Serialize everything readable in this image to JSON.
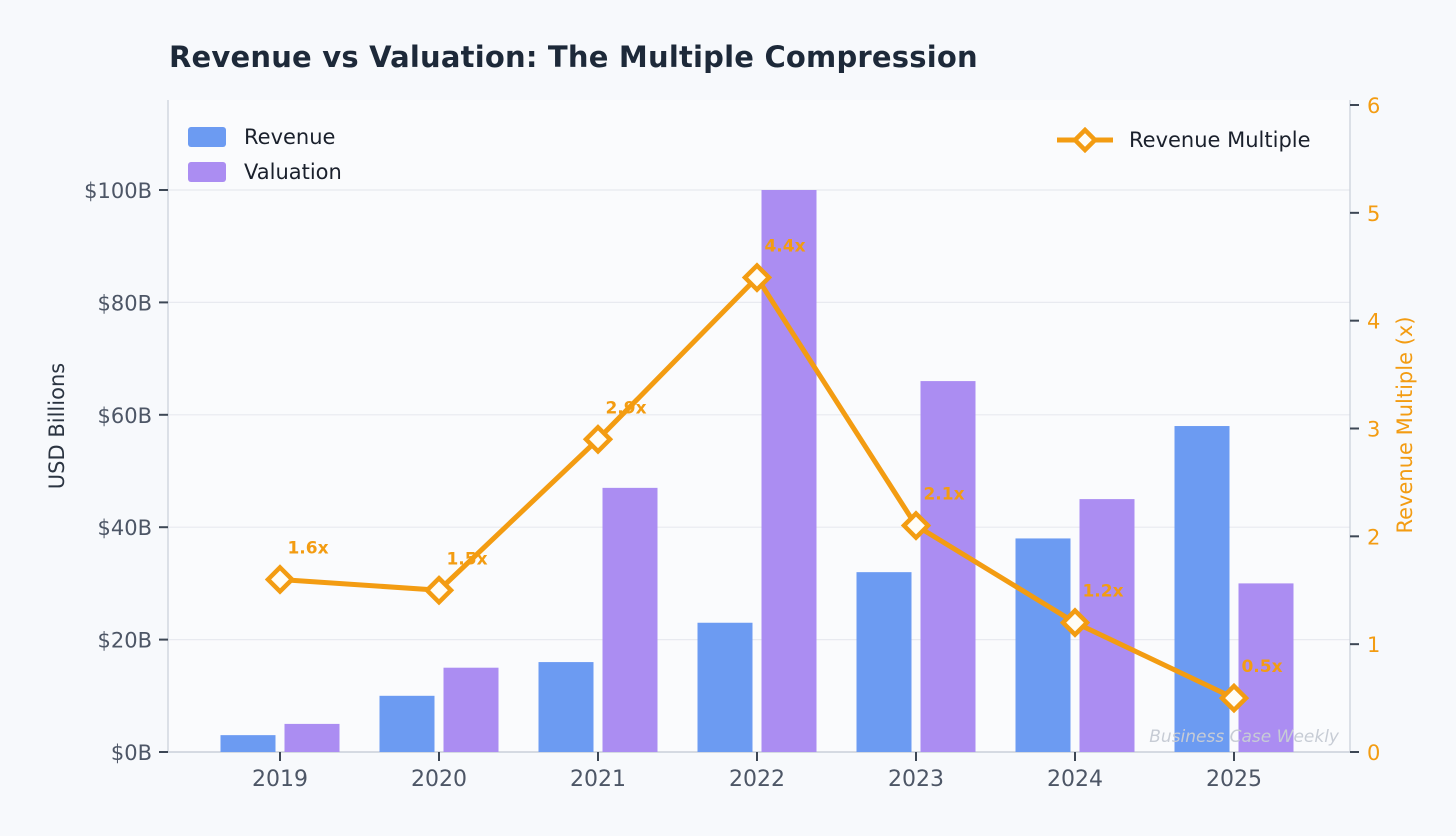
{
  "title": "Revenue vs Valuation: The Multiple Compression",
  "watermark": "Business Case Weekly",
  "legend": {
    "revenue_label": "Revenue",
    "valuation_label": "Valuation",
    "multiple_label": "Revenue Multiple"
  },
  "colors": {
    "revenue": "#6c9bf2",
    "valuation": "#ab8df2",
    "multiple": "#f39c12",
    "marker_fill": "#fffdf6",
    "grid": "#e8eaf0",
    "spine": "#c9cfd9",
    "tick": "#3d4755",
    "axis_text": "#4d5666",
    "plot_bg": "#fafbfd"
  },
  "chart_data": {
    "type": "bar+line",
    "title": "Revenue vs Valuation: The Multiple Compression",
    "categories": [
      "2019",
      "2020",
      "2021",
      "2022",
      "2023",
      "2024",
      "2025"
    ],
    "series": [
      {
        "name": "Revenue",
        "type": "bar",
        "axis": "left",
        "color": "#6c9bf2",
        "values": [
          3,
          10,
          16,
          23,
          32,
          38,
          58
        ]
      },
      {
        "name": "Valuation",
        "type": "bar",
        "axis": "left",
        "color": "#ab8df2",
        "values": [
          5,
          15,
          47,
          100,
          66,
          45,
          30
        ]
      },
      {
        "name": "Revenue Multiple",
        "type": "line",
        "axis": "right",
        "color": "#f39c12",
        "values": [
          1.6,
          1.5,
          2.9,
          4.4,
          2.1,
          1.2,
          0.5
        ],
        "point_labels": [
          "1.6x",
          "1.5x",
          "2.9x",
          "4.4x",
          "2.1x",
          "1.2x",
          "0.5x"
        ]
      }
    ],
    "left_axis": {
      "label": "USD Billions",
      "ticks": [
        0,
        20,
        40,
        60,
        80,
        100
      ],
      "tick_labels": [
        "$0B",
        "$20B",
        "$40B",
        "$60B",
        "$80B",
        "$100B"
      ],
      "range": [
        0,
        116
      ]
    },
    "right_axis": {
      "label": "Revenue Multiple (x)",
      "ticks": [
        0,
        1,
        2,
        3,
        4,
        5,
        6
      ],
      "tick_labels": [
        "0",
        "1",
        "2",
        "3",
        "4",
        "5",
        "6"
      ],
      "range": [
        0,
        6
      ]
    },
    "grid": true,
    "legend_position": "bar legend top-left, line legend top-right"
  }
}
